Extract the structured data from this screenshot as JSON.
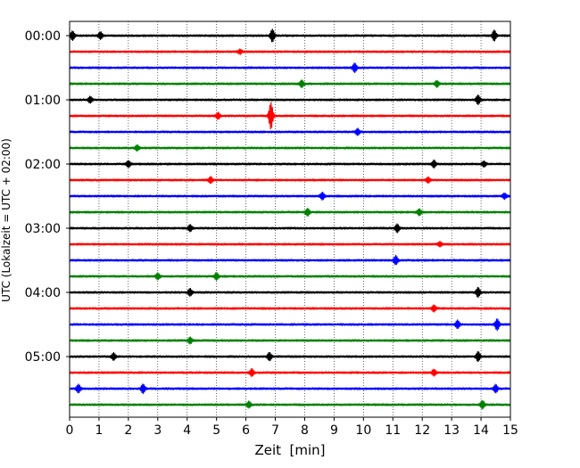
{
  "chart_data": {
    "type": "line",
    "subtype": "helicorder-seismogram",
    "title": "",
    "xlabel": "Zeit  [min]",
    "ylabel": "UTC (Lokalzeit = UTC + 02:00)",
    "xlim": [
      0,
      15
    ],
    "x_ticks": [
      0,
      1,
      2,
      3,
      4,
      5,
      6,
      7,
      8,
      9,
      10,
      11,
      12,
      13,
      14,
      15
    ],
    "x_tick_labels": [
      "0",
      "1",
      "2",
      "3",
      "4",
      "5",
      "6",
      "7",
      "8",
      "9",
      "10",
      "11",
      "12",
      "13",
      "14",
      "15"
    ],
    "grid": "vertical dotted at every minute",
    "trace_interval_min": 15,
    "y_tick_labels": [
      "00:00",
      "01:00",
      "02:00",
      "03:00",
      "04:00",
      "05:00"
    ],
    "trace_color_cycle": [
      "#000000",
      "#ff0000",
      "#0000ff",
      "#008000"
    ],
    "rows": [
      {
        "start": "00:00",
        "events": [
          {
            "t": 0.1,
            "amp": 0.5
          },
          {
            "t": 1.05,
            "amp": 0.4
          },
          {
            "t": 6.9,
            "amp": 0.7
          },
          {
            "t": 14.45,
            "amp": 0.6
          }
        ]
      },
      {
        "start": "00:15",
        "events": [
          {
            "t": 5.8,
            "amp": 0.25
          }
        ]
      },
      {
        "start": "00:30",
        "events": [
          {
            "t": 9.7,
            "amp": 0.5
          }
        ]
      },
      {
        "start": "00:45",
        "events": [
          {
            "t": 7.9,
            "amp": 0.4
          },
          {
            "t": 12.5,
            "amp": 0.35
          }
        ]
      },
      {
        "start": "01:00",
        "events": [
          {
            "t": 0.7,
            "amp": 0.35
          },
          {
            "t": 13.9,
            "amp": 0.5
          }
        ]
      },
      {
        "start": "01:15",
        "events": [
          {
            "t": 5.05,
            "amp": 0.35
          },
          {
            "t": 6.85,
            "amp": 1.6
          }
        ]
      },
      {
        "start": "01:30",
        "events": [
          {
            "t": 9.8,
            "amp": 0.35
          }
        ]
      },
      {
        "start": "01:45",
        "events": [
          {
            "t": 2.3,
            "amp": 0.3
          }
        ]
      },
      {
        "start": "02:00",
        "events": [
          {
            "t": 2.0,
            "amp": 0.35
          },
          {
            "t": 12.4,
            "amp": 0.4
          },
          {
            "t": 14.1,
            "amp": 0.3
          }
        ]
      },
      {
        "start": "02:15",
        "events": [
          {
            "t": 4.8,
            "amp": 0.35
          },
          {
            "t": 12.2,
            "amp": 0.3
          }
        ]
      },
      {
        "start": "02:30",
        "events": [
          {
            "t": 8.6,
            "amp": 0.4
          },
          {
            "t": 14.8,
            "amp": 0.3
          }
        ]
      },
      {
        "start": "02:45",
        "events": [
          {
            "t": 8.1,
            "amp": 0.4
          },
          {
            "t": 11.9,
            "amp": 0.35
          }
        ]
      },
      {
        "start": "03:00",
        "events": [
          {
            "t": 4.1,
            "amp": 0.35
          },
          {
            "t": 11.15,
            "amp": 0.45
          }
        ]
      },
      {
        "start": "03:15",
        "events": [
          {
            "t": 12.6,
            "amp": 0.25
          }
        ]
      },
      {
        "start": "03:30",
        "events": [
          {
            "t": 11.1,
            "amp": 0.5
          }
        ]
      },
      {
        "start": "03:45",
        "events": [
          {
            "t": 3.0,
            "amp": 0.35
          },
          {
            "t": 5.0,
            "amp": 0.4
          }
        ]
      },
      {
        "start": "04:00",
        "events": [
          {
            "t": 4.1,
            "amp": 0.4
          },
          {
            "t": 13.9,
            "amp": 0.55
          }
        ]
      },
      {
        "start": "04:15",
        "events": [
          {
            "t": 12.4,
            "amp": 0.35
          }
        ]
      },
      {
        "start": "04:30",
        "events": [
          {
            "t": 13.2,
            "amp": 0.45
          },
          {
            "t": 14.55,
            "amp": 0.65
          }
        ]
      },
      {
        "start": "04:45",
        "events": [
          {
            "t": 4.1,
            "amp": 0.35
          }
        ]
      },
      {
        "start": "05:00",
        "events": [
          {
            "t": 1.5,
            "amp": 0.4
          },
          {
            "t": 6.8,
            "amp": 0.45
          },
          {
            "t": 13.9,
            "amp": 0.55
          }
        ]
      },
      {
        "start": "05:15",
        "events": [
          {
            "t": 6.2,
            "amp": 0.4
          },
          {
            "t": 12.4,
            "amp": 0.35
          }
        ]
      },
      {
        "start": "05:30",
        "events": [
          {
            "t": 0.3,
            "amp": 0.45
          },
          {
            "t": 2.5,
            "amp": 0.5
          },
          {
            "t": 14.5,
            "amp": 0.45
          }
        ]
      },
      {
        "start": "05:45",
        "events": [
          {
            "t": 6.1,
            "amp": 0.35
          },
          {
            "t": 14.05,
            "amp": 0.45
          }
        ]
      }
    ]
  }
}
